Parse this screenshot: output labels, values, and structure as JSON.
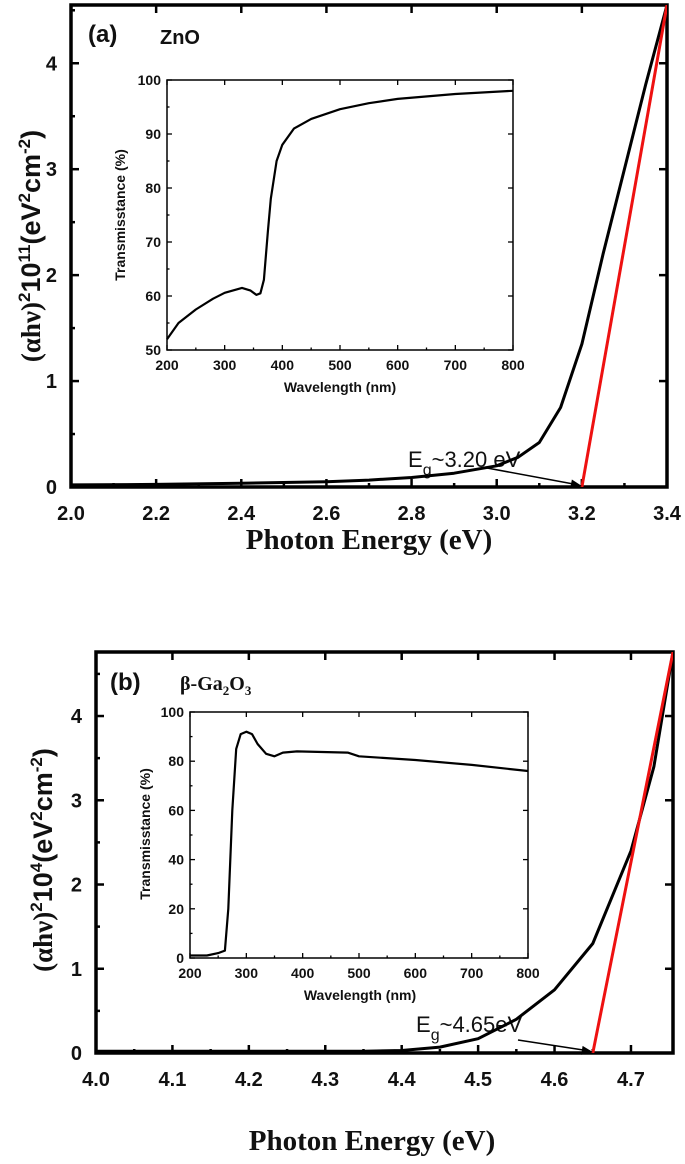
{
  "chart_data": [
    {
      "type": "line",
      "panel_label": "(a)",
      "material": "ZnO",
      "xlabel": "Photon Energy (eV)",
      "ylabel": {
        "prefix": "(αhν)",
        "sup1": "2",
        "mid": "10",
        "sup2": "11",
        "unit_a": "(eV",
        "sup3": "2",
        "unit_b": "cm",
        "sup4": "-2",
        "close": ")"
      },
      "xlim": [
        2.0,
        3.4
      ],
      "ylim": [
        0,
        4.55
      ],
      "xticks": [
        "2.0",
        "2.2",
        "2.4",
        "2.6",
        "2.8",
        "3.0",
        "3.2",
        "3.4"
      ],
      "yticks": [
        "0",
        "1",
        "2",
        "3",
        "4"
      ],
      "series": [
        {
          "color": "#000000",
          "x": [
            2.0,
            2.2,
            2.4,
            2.6,
            2.7,
            2.8,
            2.9,
            3.0,
            3.05,
            3.1,
            3.15,
            3.2,
            3.25,
            3.3,
            3.35,
            3.4
          ],
          "y": [
            0.02,
            0.025,
            0.035,
            0.05,
            0.065,
            0.09,
            0.13,
            0.2,
            0.28,
            0.42,
            0.75,
            1.35,
            2.2,
            3.0,
            3.8,
            4.55
          ]
        },
        {
          "color": "#ee1111",
          "x": [
            3.2,
            3.4
          ],
          "y": [
            0,
            4.55
          ]
        }
      ],
      "annotation": {
        "E": "E",
        "sub": "g",
        "text": "~3.20 eV",
        "arrow_to_x": 3.2
      },
      "inset": {
        "xlabel": "Wavelength (nm)",
        "ylabel": "Transmisstance (%)",
        "xlim": [
          200,
          800
        ],
        "ylim": [
          50,
          100
        ],
        "xticks": [
          "200",
          "300",
          "400",
          "500",
          "600",
          "700",
          "800"
        ],
        "yticks": [
          "50",
          "60",
          "70",
          "80",
          "90",
          "100"
        ],
        "x": [
          200,
          220,
          250,
          280,
          300,
          330,
          345,
          355,
          362,
          368,
          375,
          380,
          390,
          400,
          420,
          450,
          500,
          550,
          600,
          700,
          800
        ],
        "y": [
          52,
          55,
          57.5,
          59.5,
          60.6,
          61.5,
          61,
          60.2,
          60.5,
          63,
          72,
          78,
          85,
          88,
          91,
          92.8,
          94.6,
          95.7,
          96.5,
          97.4,
          98
        ]
      }
    },
    {
      "type": "line",
      "panel_label": "(b)",
      "material": {
        "prefix": "β-Ga",
        "sub1": "2",
        "mid": "O",
        "sub2": "3"
      },
      "xlabel": "Photon Energy (eV)",
      "ylabel": {
        "prefix": "(αhν)",
        "sup1": "2",
        "mid": "10",
        "sup2": "4",
        "unit_a": "(eV",
        "sup3": "2",
        "unit_b": "cm",
        "sup4": "-2",
        "close": ")"
      },
      "xlim": [
        4.0,
        4.755
      ],
      "ylim": [
        0,
        4.76
      ],
      "xticks": [
        "4.0",
        "4.1",
        "4.2",
        "4.3",
        "4.4",
        "4.5",
        "4.6",
        "4.7"
      ],
      "yticks": [
        "0",
        "1",
        "2",
        "3",
        "4"
      ],
      "series": [
        {
          "color": "#000000",
          "x": [
            4.0,
            4.2,
            4.35,
            4.4,
            4.45,
            4.5,
            4.55,
            4.6,
            4.65,
            4.7,
            4.73,
            4.755
          ],
          "y": [
            0.02,
            0.02,
            0.02,
            0.03,
            0.07,
            0.17,
            0.4,
            0.75,
            1.3,
            2.4,
            3.4,
            4.76
          ]
        },
        {
          "color": "#ee1111",
          "x": [
            4.65,
            4.755
          ],
          "y": [
            0,
            4.76
          ]
        }
      ],
      "annotation": {
        "E": "E",
        "sub": "g",
        "text": "~4.65eV",
        "arrow_to_x": 4.65
      },
      "inset": {
        "xlabel": "Wavelength (nm)",
        "ylabel": "Transmisstance (%)",
        "xlim": [
          200,
          800
        ],
        "ylim": [
          0,
          100
        ],
        "xticks": [
          "200",
          "300",
          "400",
          "500",
          "600",
          "700",
          "800"
        ],
        "yticks": [
          "0",
          "20",
          "40",
          "60",
          "80",
          "100"
        ],
        "x": [
          200,
          230,
          250,
          262,
          268,
          275,
          282,
          290,
          300,
          310,
          320,
          335,
          350,
          365,
          390,
          480,
          500,
          600,
          700,
          800
        ],
        "y": [
          1,
          1,
          2,
          3,
          20,
          60,
          85,
          91,
          92,
          91,
          87,
          83,
          82,
          83.5,
          84,
          83.5,
          82,
          80.5,
          78.5,
          76
        ]
      }
    }
  ]
}
